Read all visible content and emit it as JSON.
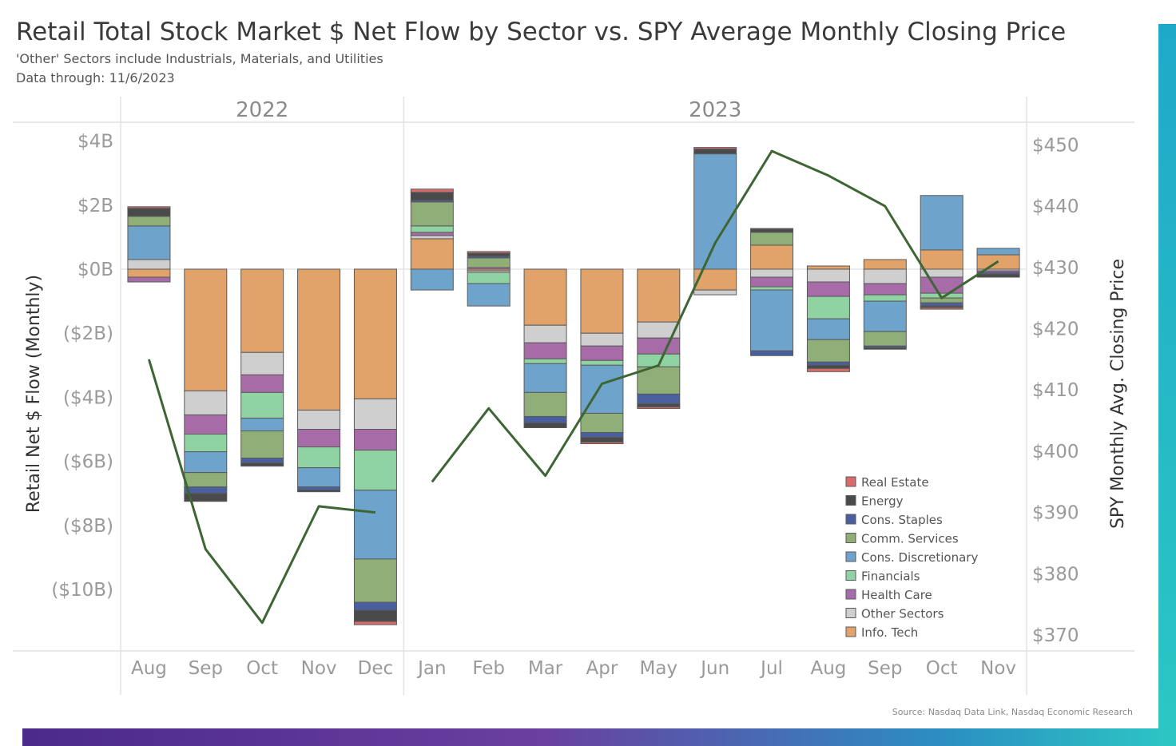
{
  "chart_data": {
    "type": "bar",
    "title": "Retail Total Stock Market $ Net Flow by Sector vs. SPY Average Monthly Closing Price",
    "subtitle": "'Other' Sectors include Industrials, Materials, and Utilities",
    "data_through": "Data through: 11/6/2023",
    "source": "Source: Nasdaq Data Link, Nasdaq Economic Research",
    "ylabel_left": "Retail Net $ Flow (Monthly)",
    "ylabel_right": "SPY Monthly Avg. Closing Price",
    "ylim_left": [
      -12,
      4.2
    ],
    "ylim_right": [
      370,
      452
    ],
    "y_ticks_left": [
      4,
      2,
      0,
      -2,
      -4,
      -6,
      -8,
      -10
    ],
    "y_tick_labels_left": [
      "$4B",
      "$2B",
      "$0B",
      "($2B)",
      "($4B)",
      "($6B)",
      "($8B)",
      "($10B)"
    ],
    "y_ticks_right": [
      450,
      440,
      430,
      420,
      410,
      400,
      390,
      380,
      370
    ],
    "y_tick_labels_right": [
      "$450",
      "$440",
      "$430",
      "$420",
      "$410",
      "$400",
      "$390",
      "$380",
      "$370"
    ],
    "years": [
      {
        "label": "2022",
        "start": 0,
        "end": 5
      },
      {
        "label": "2023",
        "start": 5,
        "end": 16
      }
    ],
    "categories": [
      "Aug",
      "Sep",
      "Oct",
      "Nov",
      "Dec",
      "Jan",
      "Feb",
      "Mar",
      "Apr",
      "May",
      "Jun",
      "Jul",
      "Aug",
      "Sep",
      "Oct",
      "Nov"
    ],
    "series": [
      {
        "name": "Info. Tech",
        "color": "#e2a36a",
        "values": [
          -0.25,
          -3.8,
          -2.6,
          -4.4,
          -4.05,
          0.95,
          -0.05,
          -1.75,
          -2.0,
          -1.65,
          -0.65,
          0.75,
          0.1,
          0.3,
          0.6,
          0.45
        ]
      },
      {
        "name": "Other Sectors",
        "color": "#cfcfcf",
        "values": [
          0.3,
          -0.75,
          -0.7,
          -0.6,
          -0.95,
          0.1,
          -0.05,
          -0.55,
          -0.4,
          -0.5,
          -0.15,
          -0.25,
          -0.4,
          -0.45,
          -0.25,
          -0.05
        ]
      },
      {
        "name": "Health Care",
        "color": "#a76ba8",
        "values": [
          -0.15,
          -0.6,
          -0.55,
          -0.55,
          -0.65,
          0.1,
          0.05,
          -0.5,
          -0.45,
          -0.5,
          0,
          -0.3,
          -0.45,
          -0.35,
          -0.5,
          -0.05
        ]
      },
      {
        "name": "Financials",
        "color": "#8fd3a2",
        "values": [
          0.0,
          -0.55,
          -0.8,
          -0.65,
          -1.25,
          0.2,
          -0.35,
          -0.15,
          -0.15,
          -0.4,
          0,
          -0.1,
          -0.7,
          -0.2,
          -0.15,
          0
        ]
      },
      {
        "name": "Cons. Discretionary",
        "color": "#6ea4cb",
        "values": [
          1.05,
          -0.65,
          -0.4,
          -0.6,
          -2.15,
          -0.65,
          -0.7,
          -0.9,
          -1.5,
          0,
          3.6,
          -1.9,
          -0.65,
          -0.95,
          1.7,
          0.2
        ]
      },
      {
        "name": "Comm. Services",
        "color": "#8fae78",
        "values": [
          0.3,
          -0.45,
          -0.85,
          0,
          -1.35,
          0.75,
          0.3,
          -0.75,
          -0.6,
          -0.85,
          0,
          0.4,
          -0.7,
          -0.45,
          -0.15,
          0
        ]
      },
      {
        "name": "Cons. Staples",
        "color": "#4a5fa0",
        "values": [
          0,
          -0.2,
          -0.15,
          -0.1,
          -0.25,
          0.05,
          0.05,
          -0.2,
          -0.15,
          -0.3,
          0,
          -0.15,
          -0.1,
          -0.05,
          -0.1,
          -0.05
        ]
      },
      {
        "name": "Energy",
        "color": "#4a4a4a",
        "values": [
          0.25,
          -0.25,
          -0.1,
          -0.05,
          -0.35,
          0.25,
          0.1,
          -0.15,
          -0.15,
          -0.1,
          0.15,
          0.1,
          -0.1,
          -0.05,
          -0.05,
          -0.1
        ]
      },
      {
        "name": "Real Estate",
        "color": "#d96b6b",
        "values": [
          0.05,
          0,
          0,
          0,
          -0.1,
          0.1,
          0.05,
          0,
          -0.05,
          -0.05,
          0.05,
          0.02,
          -0.1,
          0,
          -0.05,
          0
        ]
      }
    ],
    "line": {
      "name": "SPY Monthly Avg. Closing Price",
      "color": "#3e6534",
      "axis": "right",
      "values": [
        415,
        384,
        372,
        391,
        390,
        395,
        407,
        396,
        411,
        414,
        434,
        449,
        445,
        440,
        425,
        431
      ]
    },
    "legend": {
      "placement": "bottom-right",
      "order": [
        "Real Estate",
        "Energy",
        "Cons. Staples",
        "Comm. Services",
        "Cons. Discretionary",
        "Financials",
        "Health Care",
        "Other Sectors",
        "Info. Tech"
      ]
    }
  }
}
